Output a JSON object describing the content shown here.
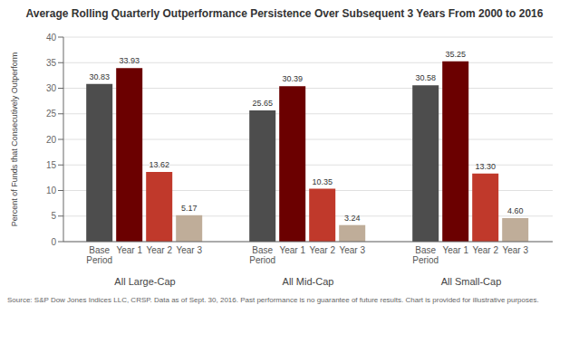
{
  "chart_data": {
    "type": "bar",
    "title": "Average Rolling Quarterly Outperformance Persistence Over Subsequent 3 Years From 2000 to 2016",
    "ylabel": "Percent of Funds that Consecutively Outperform",
    "categories": [
      "All Large-Cap",
      "All Mid-Cap",
      "All Small-Cap"
    ],
    "series": [
      {
        "name": "Base\nPeriod",
        "color": "#4d4d4d",
        "values": [
          30.83,
          25.65,
          30.58
        ],
        "value_labels": [
          "30.83",
          "25.65",
          "30.58"
        ]
      },
      {
        "name": "Year 1",
        "color": "#6b0000",
        "values": [
          33.93,
          30.39,
          35.25
        ],
        "value_labels": [
          "33.93",
          "30.39",
          "35.25"
        ]
      },
      {
        "name": "Year 2",
        "color": "#c0392b",
        "values": [
          13.62,
          10.35,
          13.3
        ],
        "value_labels": [
          "13.62",
          "10.35",
          "13.30"
        ]
      },
      {
        "name": "Year 3",
        "color": "#bfad99",
        "values": [
          5.17,
          3.24,
          4.6
        ],
        "value_labels": [
          "5.17",
          "3.24",
          "4.60"
        ]
      }
    ],
    "ylim": [
      0,
      40
    ],
    "yticks": [
      0,
      5,
      10,
      15,
      20,
      25,
      30,
      35,
      40
    ],
    "grid": true,
    "data_labels": true,
    "source": "Source: S&P Dow Jones Indices LLC, CRSP. Data as of Sept. 30, 2016. Past performance is no guarantee of future results. Chart is provided for illustrative purposes."
  }
}
